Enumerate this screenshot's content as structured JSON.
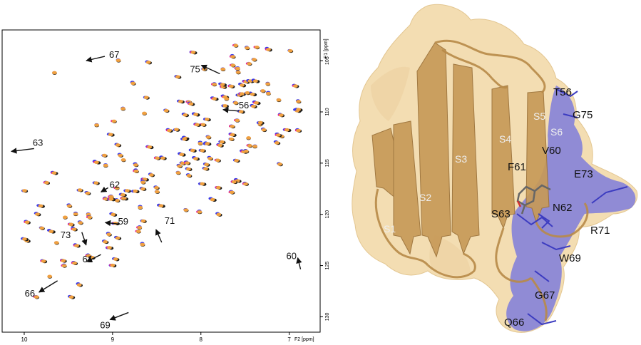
{
  "nmr": {
    "x_ticks": [
      "10",
      "9",
      "8",
      "7"
    ],
    "x_axis_label": "F2 [ppm]",
    "y_ticks": [
      "105",
      "110",
      "115",
      "120",
      "125",
      "130"
    ],
    "y_axis_label": "F1 [ppm]",
    "xlim": [
      10.25,
      6.65
    ],
    "ylim": [
      102.0,
      131.5
    ],
    "colors": {
      "black": "#1a1a1a",
      "blue": "#3a3ae8",
      "magenta": "#e0209a",
      "orange": "#f0a040",
      "arrow": "#111111"
    },
    "annotations": [
      {
        "label": "67",
        "x": 9.12,
        "y": 104.3
      },
      {
        "label": "75",
        "x": 7.85,
        "y": 106.0
      },
      {
        "label": "56",
        "x": 7.62,
        "y": 109.5
      },
      {
        "label": "63",
        "x": 9.92,
        "y": 113.3
      },
      {
        "label": "62",
        "x": 9.05,
        "y": 117.4
      },
      {
        "label": "59",
        "x": 8.97,
        "y": 120.8
      },
      {
        "label": "73",
        "x": 9.38,
        "y": 122.3
      },
      {
        "label": "71",
        "x": 8.46,
        "y": 121.9
      },
      {
        "label": "61",
        "x": 9.18,
        "y": 124.2
      },
      {
        "label": "60",
        "x": 6.92,
        "y": 124.8
      },
      {
        "label": "66",
        "x": 9.72,
        "y": 126.9
      },
      {
        "label": "69",
        "x": 8.9,
        "y": 130.0
      }
    ]
  },
  "structure": {
    "strand_labels": [
      "S1",
      "S2",
      "S3",
      "S4",
      "S5",
      "S6"
    ],
    "residue_labels": [
      "T56",
      "G75",
      "V60",
      "F61",
      "E73",
      "S63",
      "N62",
      "R71",
      "W69",
      "G67",
      "Q66"
    ],
    "colors": {
      "surface": "#f3dcae",
      "cartoon": "#b88a48",
      "highlight": "#6f6fe0",
      "label": "#111111",
      "strand_label": "#eeeeee"
    }
  }
}
